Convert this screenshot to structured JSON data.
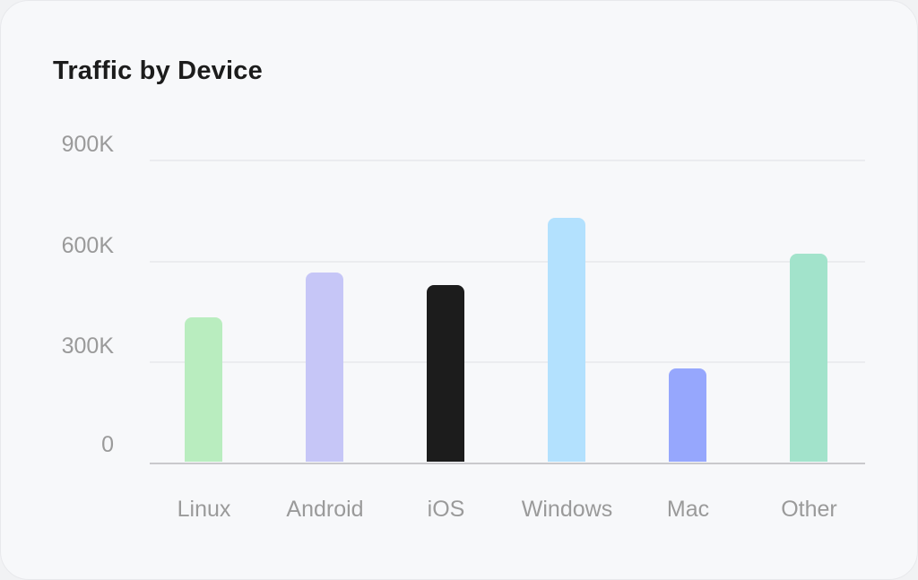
{
  "card": {
    "title": "Traffic by Device"
  },
  "chart_data": {
    "type": "bar",
    "title": "Traffic by Device",
    "xlabel": "",
    "ylabel": "",
    "categories": [
      "Linux",
      "Android",
      "iOS",
      "Windows",
      "Mac",
      "Other"
    ],
    "values": [
      428000,
      562000,
      525000,
      724000,
      277000,
      618000
    ],
    "colors": [
      "#b9edbf",
      "#c6c6f7",
      "#1c1c1c",
      "#b3e1fe",
      "#96a7fd",
      "#a2e3cb"
    ],
    "yticks": [
      "0",
      "300K",
      "600K",
      "900K"
    ],
    "ylim": [
      0,
      900000
    ],
    "grid": true,
    "legend": "none"
  }
}
